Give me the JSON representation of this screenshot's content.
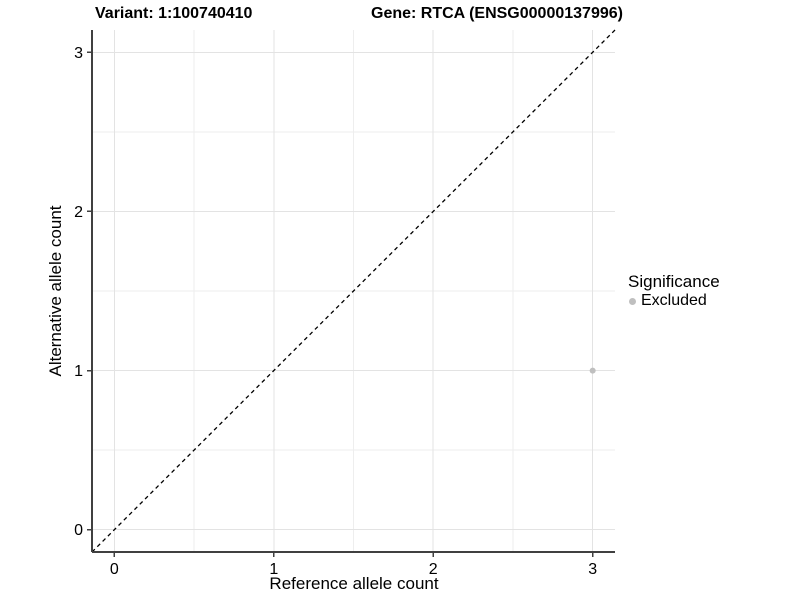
{
  "titles": {
    "left": "Variant: 1:100740410",
    "right": "Gene: RTCA (ENSG00000137996)"
  },
  "legend": {
    "title": "Significance",
    "items": [
      {
        "label": "Excluded",
        "color": "#bfbfbf"
      }
    ]
  },
  "chart_data": {
    "type": "scatter",
    "title": "Variant: 1:100740410   Gene: RTCA (ENSG00000137996)",
    "xlabel": "Reference allele count",
    "ylabel": "Alternative allele count",
    "xlim": [
      -0.14,
      3.14
    ],
    "ylim": [
      -0.14,
      3.14
    ],
    "xticks": [
      0,
      1,
      2,
      3
    ],
    "yticks": [
      0,
      1,
      2,
      3
    ],
    "minor_xticks": [
      0.5,
      1.5,
      2.5
    ],
    "minor_yticks": [
      0.5,
      1.5,
      2.5
    ],
    "grid": true,
    "legend_position": "right",
    "series": [
      {
        "name": "Excluded",
        "color": "#bfbfbf",
        "points": [
          {
            "x": 3,
            "y": 1
          }
        ]
      }
    ],
    "reference_line": {
      "type": "identity",
      "style": "dashed",
      "color": "#000000"
    }
  },
  "colors": {
    "background": "#ffffff",
    "grid_major": "#e3e3e3",
    "grid_minor": "#eeeeee",
    "axis_line": "#404040",
    "text": "#000000",
    "point": "#bfbfbf"
  }
}
